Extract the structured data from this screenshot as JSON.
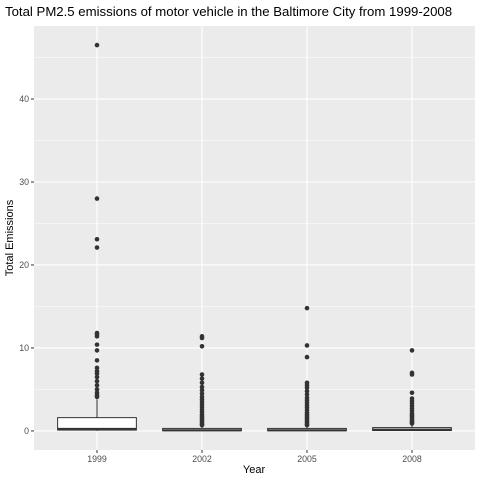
{
  "chart_data": {
    "type": "boxplot",
    "title": "Total PM2.5 emissions of motor vehicle in the Baltimore City from 1999-2008",
    "xlabel": "Year",
    "ylabel": "Total Emissions",
    "ylim": [
      -2.3,
      48.8
    ],
    "y_ticks": [
      0,
      10,
      20,
      30,
      40
    ],
    "grid": true,
    "colors": {
      "panel": "#ebebeb",
      "grid_major": "#ffffff",
      "box_fill": "#ffffff",
      "box_line": "#333333",
      "outlier": "#333333",
      "tick_text": "#4d4d4d"
    },
    "categories": [
      "1999",
      "2002",
      "2005",
      "2008"
    ],
    "boxes": [
      {
        "category": "1999",
        "whisker_low": 0,
        "q1": 0.1,
        "median": 0.25,
        "q3": 1.6,
        "whisker_high": 3.8,
        "outliers": [
          46.5,
          28.0,
          23.1,
          22.1,
          11.8,
          11.6,
          11.4,
          10.4,
          9.7,
          8.5,
          7.6,
          7.2,
          6.9,
          6.5,
          6.0,
          5.5,
          5.0,
          4.6,
          4.3,
          4.1
        ]
      },
      {
        "category": "2002",
        "whisker_low": 0,
        "q1": 0.02,
        "median": 0.08,
        "q3": 0.3,
        "whisker_high": 0.6,
        "outliers": [
          11.4,
          11.2,
          10.2,
          6.8,
          6.3,
          5.8,
          5.3,
          4.9,
          4.5,
          4.1,
          3.8,
          3.5,
          3.2,
          2.9,
          2.6,
          2.3,
          2.0,
          1.8,
          1.6,
          1.4,
          1.2,
          1.0,
          0.8,
          0.7
        ]
      },
      {
        "category": "2005",
        "whisker_low": 0,
        "q1": 0.02,
        "median": 0.08,
        "q3": 0.3,
        "whisker_high": 0.6,
        "outliers": [
          14.8,
          10.3,
          8.9,
          5.8,
          5.5,
          5.2,
          4.8,
          4.4,
          4.0,
          3.7,
          3.4,
          3.1,
          2.8,
          2.5,
          2.2,
          2.0,
          1.8,
          1.6,
          1.4,
          1.2,
          1.0,
          0.8,
          0.7
        ]
      },
      {
        "category": "2008",
        "whisker_low": 0,
        "q1": 0.05,
        "median": 0.15,
        "q3": 0.4,
        "whisker_high": 0.8,
        "outliers": [
          9.7,
          7.0,
          6.8,
          4.6,
          3.9,
          3.6,
          3.3,
          3.0,
          2.7,
          2.4,
          2.1,
          1.9,
          1.7,
          1.5,
          1.3,
          1.1,
          1.0,
          0.9
        ]
      }
    ]
  }
}
